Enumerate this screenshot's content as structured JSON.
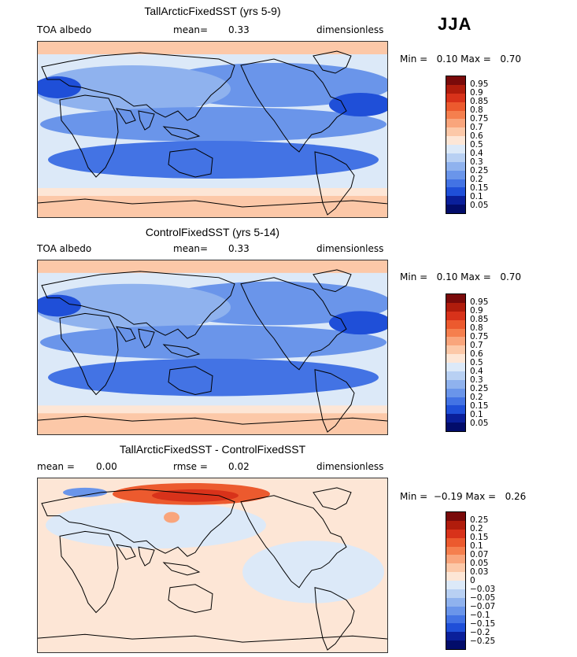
{
  "season": "JJA",
  "panels": [
    {
      "title": "TallArcticFixedSST (yrs 5-9)",
      "left_label": "TOA albedo",
      "mid_label": "mean=",
      "mid_value": "0.33",
      "right_label": "dimensionless",
      "min_label": "Min =",
      "min_value": "0.10",
      "max_label": "Max =",
      "max_value": "0.70",
      "colorbar_labels": [
        "0.95",
        "0.9",
        "0.85",
        "0.8",
        "0.75",
        "0.7",
        "0.6",
        "0.5",
        "0.4",
        "0.3",
        "0.25",
        "0.2",
        "0.15",
        "0.1",
        "0.05"
      ]
    },
    {
      "title": "ControlFixedSST (yrs 5-14)",
      "left_label": "TOA albedo",
      "mid_label": "mean=",
      "mid_value": "0.33",
      "right_label": "dimensionless",
      "min_label": "Min =",
      "min_value": "0.10",
      "max_label": "Max =",
      "max_value": "0.70",
      "colorbar_labels": [
        "0.95",
        "0.9",
        "0.85",
        "0.8",
        "0.75",
        "0.7",
        "0.6",
        "0.5",
        "0.4",
        "0.3",
        "0.25",
        "0.2",
        "0.15",
        "0.1",
        "0.05"
      ]
    },
    {
      "title": "TallArcticFixedSST - ControlFixedSST",
      "left_label": "mean =",
      "left_value": "0.00",
      "mid_label": "rmse =",
      "mid_value": "0.02",
      "right_label": "dimensionless",
      "min_label": "Min =",
      "min_value": "−0.19",
      "max_label": "Max =",
      "max_value": "0.26",
      "colorbar_labels": [
        "0.25",
        "0.2",
        "0.15",
        "0.1",
        "0.07",
        "0.05",
        "0.03",
        "0",
        "−0.03",
        "−0.05",
        "−0.07",
        "−0.1",
        "−0.15",
        "−0.2",
        "−0.25"
      ]
    }
  ],
  "colors": {
    "abs_scale": [
      "#7a0a0a",
      "#b01c0c",
      "#d8321a",
      "#ec5a2e",
      "#f57f4e",
      "#f9a57c",
      "#fcc8a8",
      "#fde6d6",
      "#dce9f8",
      "#b8d0f3",
      "#8fb2ee",
      "#6a95ea",
      "#4373e4",
      "#1f4fd8",
      "#0a1f9a",
      "#020c6a"
    ],
    "diff_scale": [
      "#7a0a0a",
      "#b01c0c",
      "#d8321a",
      "#ec5a2e",
      "#f57f4e",
      "#f9a57c",
      "#fcc8a8",
      "#fde6d6",
      "#dce9f8",
      "#b8d0f3",
      "#8fb2ee",
      "#6a95ea",
      "#4373e4",
      "#1f4fd8",
      "#0a1f9a",
      "#020c6a"
    ],
    "land_outline": "#000000"
  }
}
